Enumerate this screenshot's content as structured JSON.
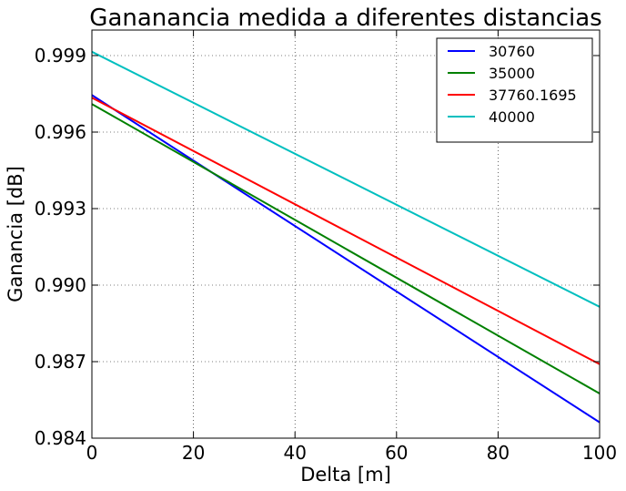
{
  "chart_data": {
    "type": "line",
    "title": "Gananancia medida a diferentes distancias",
    "xlabel": "Delta [m]",
    "ylabel": "Ganancia [dB]",
    "xlim": [
      0,
      100
    ],
    "ylim": [
      0.984,
      1.0
    ],
    "xticks": [
      "0",
      "20",
      "40",
      "60",
      "80",
      "100"
    ],
    "yticks": [
      "0.984",
      "0.987",
      "0.990",
      "0.993",
      "0.996",
      "0.999"
    ],
    "grid": true,
    "legend_position": "top-right",
    "x": [
      0,
      100
    ],
    "series": [
      {
        "name": "30760",
        "color": "#0000ff",
        "values": [
          0.99745,
          0.98462
        ]
      },
      {
        "name": "35000",
        "color": "#008000",
        "values": [
          0.9971,
          0.98575
        ]
      },
      {
        "name": "37760.1695",
        "color": "#ff0000",
        "values": [
          0.99735,
          0.9869
        ]
      },
      {
        "name": "40000",
        "color": "#00bfbf",
        "values": [
          0.99915,
          0.98915
        ]
      }
    ]
  }
}
